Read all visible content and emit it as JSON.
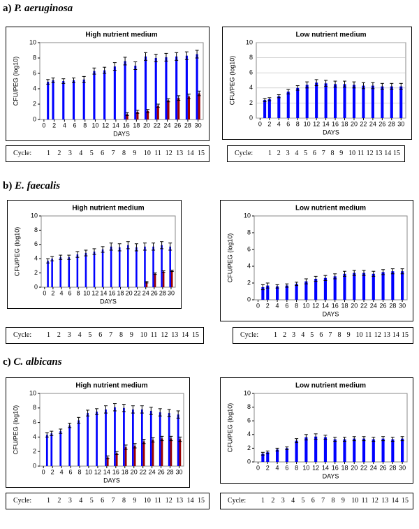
{
  "sections": [
    {
      "label": "a)",
      "species": "P. aeruginosa"
    },
    {
      "label": "b)",
      "species": "E. faecalis"
    },
    {
      "label": "c)",
      "species": "C. albicans"
    }
  ],
  "cycle_rows": [
    {
      "label": "Cycle:",
      "cycles": [
        1,
        2,
        3,
        4,
        5,
        6,
        7,
        8,
        9,
        10,
        11,
        12,
        13,
        14,
        15
      ]
    },
    {
      "label": "Cycle:",
      "cycles": [
        1,
        2,
        3,
        4,
        5,
        6,
        7,
        8,
        9,
        10,
        11,
        12,
        13,
        14,
        15
      ]
    },
    {
      "label": "Cycle:",
      "cycles": [
        1,
        2,
        3,
        4,
        5,
        6,
        7,
        8,
        9,
        10,
        11,
        12,
        13,
        14,
        15
      ]
    },
    {
      "label": "Cycle:",
      "cycles": [
        1,
        2,
        3,
        4,
        5,
        6,
        7,
        8,
        9,
        10,
        11,
        12,
        13,
        14,
        15
      ]
    },
    {
      "label": "Cycle:",
      "cycles": [
        1,
        2,
        3,
        4,
        5,
        6,
        7,
        8,
        9,
        10,
        11,
        12,
        13,
        14,
        15
      ]
    },
    {
      "label": "Cycle:",
      "cycles": [
        1,
        2,
        3,
        4,
        5,
        6,
        7,
        8,
        9,
        10,
        11,
        12,
        13,
        14,
        15
      ]
    }
  ],
  "chart_data": [
    {
      "type": "bar",
      "title": "High nutrient medium",
      "x_label": "DAYS",
      "y_label": "CFU/PEG (log10)",
      "x": [
        1,
        2,
        4,
        6,
        8,
        10,
        12,
        14,
        16,
        18,
        20,
        22,
        24,
        26,
        28,
        30
      ],
      "xlim": [
        -0.8,
        31
      ],
      "xticks": [
        0,
        2,
        4,
        6,
        8,
        10,
        12,
        14,
        16,
        18,
        20,
        22,
        24,
        26,
        28,
        30
      ],
      "ylim": [
        0,
        10
      ],
      "yticks": [
        0,
        2,
        4,
        6,
        8,
        10
      ],
      "grid": false,
      "series": [
        {
          "color": "#0000ff",
          "values": [
            4.9,
            5.1,
            5.0,
            5.1,
            5.2,
            6.3,
            6.4,
            6.9,
            7.6,
            7.0,
            8.2,
            8.0,
            8.1,
            8.2,
            8.3,
            8.5
          ],
          "errors": [
            0.3,
            0.3,
            0.3,
            0.3,
            0.4,
            0.4,
            0.4,
            0.5,
            0.5,
            0.5,
            0.5,
            0.5,
            0.5,
            0.5,
            0.5,
            0.5
          ]
        },
        {
          "color": "#990000",
          "values": [
            null,
            null,
            null,
            null,
            null,
            null,
            null,
            null,
            0.7,
            1.0,
            1.1,
            1.8,
            2.5,
            2.8,
            3.0,
            3.4
          ],
          "errors": [
            null,
            null,
            null,
            null,
            null,
            null,
            null,
            null,
            0.2,
            0.2,
            0.2,
            0.2,
            0.2,
            0.3,
            0.3,
            0.3
          ]
        }
      ]
    },
    {
      "type": "bar",
      "title": "Low nutrient medium",
      "x_label": "DAYS",
      "y_label": "CFU/PEG (log10)",
      "x": [
        1,
        2,
        4,
        6,
        8,
        10,
        12,
        14,
        16,
        18,
        20,
        22,
        24,
        26,
        28,
        30
      ],
      "xlim": [
        -0.8,
        31
      ],
      "xticks": [
        0,
        2,
        4,
        6,
        8,
        10,
        12,
        14,
        16,
        18,
        20,
        22,
        24,
        26,
        28,
        30
      ],
      "ylim": [
        0,
        10
      ],
      "yticks": [
        0,
        2,
        4,
        6,
        8,
        10
      ],
      "grid": true,
      "series": [
        {
          "color": "#0000ff",
          "values": [
            2.4,
            2.5,
            2.9,
            3.5,
            4.0,
            4.4,
            4.7,
            4.6,
            4.5,
            4.5,
            4.4,
            4.3,
            4.3,
            4.2,
            4.2,
            4.2
          ],
          "errors": [
            0.2,
            0.2,
            0.2,
            0.3,
            0.3,
            0.4,
            0.4,
            0.4,
            0.4,
            0.4,
            0.4,
            0.4,
            0.4,
            0.4,
            0.4,
            0.4
          ]
        }
      ]
    },
    {
      "type": "bar",
      "title": "High nutrient medium",
      "x_label": "DAYS",
      "y_label": "CFU/PEG (log10)",
      "x": [
        1,
        2,
        4,
        6,
        8,
        10,
        12,
        14,
        16,
        18,
        20,
        22,
        24,
        26,
        28,
        30
      ],
      "xlim": [
        -0.8,
        31
      ],
      "xticks": [
        0,
        2,
        4,
        6,
        8,
        10,
        12,
        14,
        16,
        18,
        20,
        22,
        24,
        26,
        28,
        30
      ],
      "ylim": [
        0,
        10
      ],
      "yticks": [
        0,
        2,
        4,
        6,
        8,
        10
      ],
      "grid": false,
      "series": [
        {
          "color": "#0000ff",
          "values": [
            3.7,
            4.0,
            4.2,
            4.2,
            4.6,
            4.8,
            5.0,
            5.3,
            5.7,
            5.6,
            5.9,
            5.6,
            5.7,
            5.7,
            5.9,
            5.7
          ],
          "errors": [
            0.3,
            0.3,
            0.3,
            0.3,
            0.4,
            0.4,
            0.4,
            0.4,
            0.5,
            0.5,
            0.5,
            0.5,
            0.5,
            0.5,
            0.5,
            0.5
          ]
        },
        {
          "color": "#990000",
          "values": [
            null,
            null,
            null,
            null,
            null,
            null,
            null,
            null,
            null,
            null,
            null,
            null,
            0.7,
            1.9,
            2.2,
            2.3
          ],
          "errors": [
            null,
            null,
            null,
            null,
            null,
            null,
            null,
            null,
            null,
            null,
            null,
            null,
            0.1,
            0.1,
            0.1,
            0.1
          ]
        }
      ]
    },
    {
      "type": "bar",
      "title": "Low nutrient medium",
      "x_label": "DAYS",
      "y_label": "CFU/PEG (log10)",
      "x": [
        1,
        2,
        4,
        6,
        8,
        10,
        12,
        14,
        16,
        18,
        20,
        22,
        24,
        26,
        28,
        30
      ],
      "xlim": [
        -0.8,
        31
      ],
      "xticks": [
        0,
        2,
        4,
        6,
        8,
        10,
        12,
        14,
        16,
        18,
        20,
        22,
        24,
        26,
        28,
        30
      ],
      "ylim": [
        0,
        10
      ],
      "yticks": [
        0,
        2,
        4,
        6,
        8,
        10
      ],
      "grid": false,
      "series": [
        {
          "color": "#0000ff",
          "values": [
            1.5,
            1.7,
            1.6,
            1.7,
            1.9,
            2.2,
            2.5,
            2.6,
            2.8,
            3.1,
            3.2,
            3.2,
            3.1,
            3.3,
            3.4,
            3.4
          ],
          "errors": [
            0.3,
            0.3,
            0.2,
            0.2,
            0.2,
            0.3,
            0.3,
            0.3,
            0.3,
            0.3,
            0.3,
            0.3,
            0.3,
            0.3,
            0.3,
            0.3
          ]
        }
      ]
    },
    {
      "type": "bar",
      "title": "High nutrient medium",
      "x_label": "DAYS",
      "y_label": "CFU/PEG (log10)",
      "x": [
        1,
        2,
        4,
        6,
        8,
        10,
        12,
        14,
        16,
        18,
        20,
        22,
        24,
        26,
        28,
        30
      ],
      "xlim": [
        -0.8,
        31
      ],
      "xticks": [
        0,
        2,
        4,
        6,
        8,
        10,
        12,
        14,
        16,
        18,
        20,
        22,
        24,
        26,
        28,
        30
      ],
      "ylim": [
        0,
        10
      ],
      "yticks": [
        0,
        2,
        4,
        6,
        8,
        10
      ],
      "grid": false,
      "series": [
        {
          "color": "#0000ff",
          "values": [
            4.3,
            4.5,
            4.8,
            5.6,
            6.3,
            7.3,
            7.5,
            7.8,
            8.1,
            8.0,
            7.8,
            7.8,
            7.6,
            7.4,
            7.3,
            7.1
          ],
          "errors": [
            0.3,
            0.3,
            0.3,
            0.3,
            0.4,
            0.4,
            0.4,
            0.5,
            0.5,
            0.5,
            0.5,
            0.5,
            0.5,
            0.5,
            0.5,
            0.5
          ]
        },
        {
          "color": "#990000",
          "values": [
            null,
            null,
            null,
            null,
            null,
            null,
            null,
            1.2,
            1.8,
            2.6,
            2.8,
            3.4,
            3.6,
            3.8,
            3.8,
            3.7
          ],
          "errors": [
            null,
            null,
            null,
            null,
            null,
            null,
            null,
            0.2,
            0.2,
            0.3,
            0.3,
            0.3,
            0.3,
            0.3,
            0.3,
            0.3
          ]
        }
      ]
    },
    {
      "type": "bar",
      "title": "Low nutrient medium",
      "x_label": "DAYS",
      "y_label": "CFU/PEG (log10)",
      "x": [
        1,
        2,
        4,
        6,
        8,
        10,
        12,
        14,
        16,
        18,
        20,
        22,
        24,
        26,
        28,
        30
      ],
      "xlim": [
        -0.8,
        31
      ],
      "xticks": [
        0,
        2,
        4,
        6,
        8,
        10,
        12,
        14,
        16,
        18,
        20,
        22,
        24,
        26,
        28,
        30
      ],
      "ylim": [
        0,
        10
      ],
      "yticks": [
        0,
        2,
        4,
        6,
        8,
        10
      ],
      "grid": false,
      "series": [
        {
          "color": "#0000ff",
          "values": [
            1.2,
            1.4,
            1.8,
            2.0,
            3.1,
            3.6,
            3.7,
            3.6,
            3.3,
            3.3,
            3.4,
            3.4,
            3.3,
            3.4,
            3.3,
            3.4
          ],
          "errors": [
            0.2,
            0.2,
            0.2,
            0.2,
            0.3,
            0.4,
            0.4,
            0.3,
            0.3,
            0.3,
            0.3,
            0.3,
            0.3,
            0.3,
            0.3,
            0.3
          ]
        }
      ]
    }
  ]
}
